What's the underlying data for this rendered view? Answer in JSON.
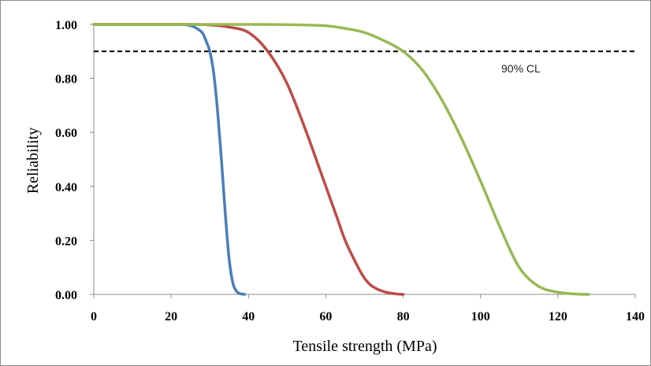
{
  "chart_data": {
    "type": "line",
    "title": "",
    "xlabel": "Tensile strength (MPa)",
    "ylabel": "Reliability",
    "xlim": [
      0,
      140
    ],
    "ylim": [
      0,
      1
    ],
    "x_ticks": [
      "0",
      "20",
      "40",
      "60",
      "80",
      "100",
      "120",
      "140"
    ],
    "y_ticks": [
      "0.00",
      "0.20",
      "0.40",
      "0.60",
      "0.80",
      "1.00"
    ],
    "grid": false,
    "legend": "none",
    "reference_line": {
      "y": 0.9,
      "style": "dashed",
      "color": "#000000",
      "label": "90% CL"
    },
    "series": [
      {
        "color": "#4a7ebb",
        "x": [
          0,
          20,
          24,
          26,
          28,
          29,
          30,
          31,
          32,
          33,
          34,
          35,
          36,
          37,
          38,
          39
        ],
        "y": [
          1.0,
          1.0,
          0.998,
          0.99,
          0.97,
          0.94,
          0.9,
          0.82,
          0.68,
          0.5,
          0.3,
          0.13,
          0.04,
          0.01,
          0.002,
          0.0
        ]
      },
      {
        "color": "#be4b48",
        "x": [
          0,
          25,
          30,
          35,
          40,
          45,
          50,
          55,
          58,
          60,
          63,
          65,
          68,
          70,
          72,
          75,
          78,
          80
        ],
        "y": [
          1.0,
          1.0,
          0.998,
          0.99,
          0.97,
          0.9,
          0.78,
          0.6,
          0.48,
          0.4,
          0.28,
          0.2,
          0.11,
          0.06,
          0.03,
          0.01,
          0.002,
          0.0
        ]
      },
      {
        "color": "#98b954",
        "x": [
          0,
          40,
          50,
          60,
          65,
          70,
          75,
          80,
          85,
          90,
          95,
          100,
          105,
          110,
          115,
          120,
          125,
          128
        ],
        "y": [
          1.0,
          1.0,
          0.999,
          0.995,
          0.985,
          0.97,
          0.94,
          0.9,
          0.83,
          0.72,
          0.58,
          0.42,
          0.25,
          0.1,
          0.03,
          0.008,
          0.001,
          0.0
        ]
      }
    ]
  }
}
